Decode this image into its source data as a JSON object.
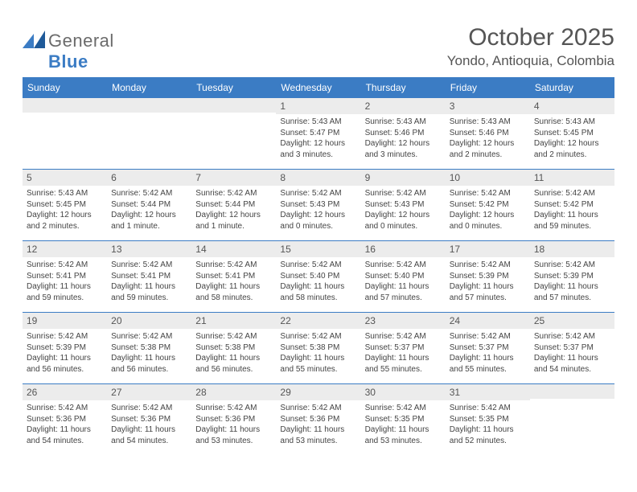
{
  "colors": {
    "brand_blue": "#3b7cc4",
    "text_gray": "#555555",
    "light_gray": "#ececec",
    "body_text": "#444444",
    "background": "#ffffff"
  },
  "logo": {
    "word1": "General",
    "word2": "Blue"
  },
  "title": "October 2025",
  "location": "Yondo, Antioquia, Colombia",
  "day_names": [
    "Sunday",
    "Monday",
    "Tuesday",
    "Wednesday",
    "Thursday",
    "Friday",
    "Saturday"
  ],
  "weeks": [
    [
      null,
      null,
      null,
      {
        "n": "1",
        "sr": "5:43 AM",
        "ss": "5:47 PM",
        "dl": "12 hours and 3 minutes."
      },
      {
        "n": "2",
        "sr": "5:43 AM",
        "ss": "5:46 PM",
        "dl": "12 hours and 3 minutes."
      },
      {
        "n": "3",
        "sr": "5:43 AM",
        "ss": "5:46 PM",
        "dl": "12 hours and 2 minutes."
      },
      {
        "n": "4",
        "sr": "5:43 AM",
        "ss": "5:45 PM",
        "dl": "12 hours and 2 minutes."
      }
    ],
    [
      {
        "n": "5",
        "sr": "5:43 AM",
        "ss": "5:45 PM",
        "dl": "12 hours and 2 minutes."
      },
      {
        "n": "6",
        "sr": "5:42 AM",
        "ss": "5:44 PM",
        "dl": "12 hours and 1 minute."
      },
      {
        "n": "7",
        "sr": "5:42 AM",
        "ss": "5:44 PM",
        "dl": "12 hours and 1 minute."
      },
      {
        "n": "8",
        "sr": "5:42 AM",
        "ss": "5:43 PM",
        "dl": "12 hours and 0 minutes."
      },
      {
        "n": "9",
        "sr": "5:42 AM",
        "ss": "5:43 PM",
        "dl": "12 hours and 0 minutes."
      },
      {
        "n": "10",
        "sr": "5:42 AM",
        "ss": "5:42 PM",
        "dl": "12 hours and 0 minutes."
      },
      {
        "n": "11",
        "sr": "5:42 AM",
        "ss": "5:42 PM",
        "dl": "11 hours and 59 minutes."
      }
    ],
    [
      {
        "n": "12",
        "sr": "5:42 AM",
        "ss": "5:41 PM",
        "dl": "11 hours and 59 minutes."
      },
      {
        "n": "13",
        "sr": "5:42 AM",
        "ss": "5:41 PM",
        "dl": "11 hours and 59 minutes."
      },
      {
        "n": "14",
        "sr": "5:42 AM",
        "ss": "5:41 PM",
        "dl": "11 hours and 58 minutes."
      },
      {
        "n": "15",
        "sr": "5:42 AM",
        "ss": "5:40 PM",
        "dl": "11 hours and 58 minutes."
      },
      {
        "n": "16",
        "sr": "5:42 AM",
        "ss": "5:40 PM",
        "dl": "11 hours and 57 minutes."
      },
      {
        "n": "17",
        "sr": "5:42 AM",
        "ss": "5:39 PM",
        "dl": "11 hours and 57 minutes."
      },
      {
        "n": "18",
        "sr": "5:42 AM",
        "ss": "5:39 PM",
        "dl": "11 hours and 57 minutes."
      }
    ],
    [
      {
        "n": "19",
        "sr": "5:42 AM",
        "ss": "5:39 PM",
        "dl": "11 hours and 56 minutes."
      },
      {
        "n": "20",
        "sr": "5:42 AM",
        "ss": "5:38 PM",
        "dl": "11 hours and 56 minutes."
      },
      {
        "n": "21",
        "sr": "5:42 AM",
        "ss": "5:38 PM",
        "dl": "11 hours and 56 minutes."
      },
      {
        "n": "22",
        "sr": "5:42 AM",
        "ss": "5:38 PM",
        "dl": "11 hours and 55 minutes."
      },
      {
        "n": "23",
        "sr": "5:42 AM",
        "ss": "5:37 PM",
        "dl": "11 hours and 55 minutes."
      },
      {
        "n": "24",
        "sr": "5:42 AM",
        "ss": "5:37 PM",
        "dl": "11 hours and 55 minutes."
      },
      {
        "n": "25",
        "sr": "5:42 AM",
        "ss": "5:37 PM",
        "dl": "11 hours and 54 minutes."
      }
    ],
    [
      {
        "n": "26",
        "sr": "5:42 AM",
        "ss": "5:36 PM",
        "dl": "11 hours and 54 minutes."
      },
      {
        "n": "27",
        "sr": "5:42 AM",
        "ss": "5:36 PM",
        "dl": "11 hours and 54 minutes."
      },
      {
        "n": "28",
        "sr": "5:42 AM",
        "ss": "5:36 PM",
        "dl": "11 hours and 53 minutes."
      },
      {
        "n": "29",
        "sr": "5:42 AM",
        "ss": "5:36 PM",
        "dl": "11 hours and 53 minutes."
      },
      {
        "n": "30",
        "sr": "5:42 AM",
        "ss": "5:35 PM",
        "dl": "11 hours and 53 minutes."
      },
      {
        "n": "31",
        "sr": "5:42 AM",
        "ss": "5:35 PM",
        "dl": "11 hours and 52 minutes."
      },
      null
    ]
  ],
  "labels": {
    "sunrise": "Sunrise:",
    "sunset": "Sunset:",
    "daylight": "Daylight:"
  }
}
